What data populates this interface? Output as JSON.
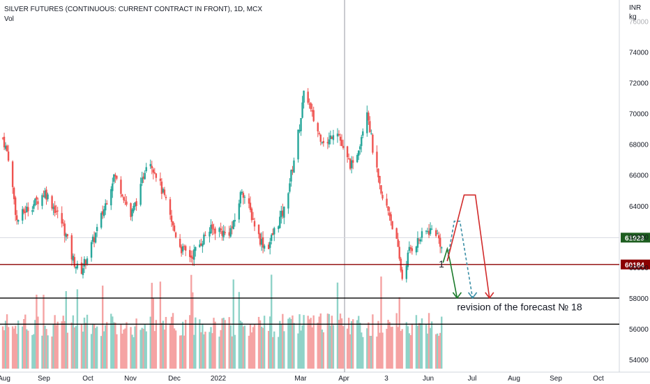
{
  "header": {
    "title": "SILVER FUTURES (CONTINUOUS: CURRENT CONTRACT IN FRONT), 1D, MCX",
    "subtitle": "Vol"
  },
  "price_axis": {
    "currency": "INR",
    "unit": "kg"
  },
  "chart_data": {
    "type": "candlestick",
    "title": "SILVER FUTURES (CONTINUOUS: CURRENT CONTRACT IN FRONT), 1D, MCX",
    "ylim": [
      53500,
      76500
    ],
    "yticks": [
      54000,
      56000,
      58000,
      60000,
      62000,
      64000,
      66000,
      68000,
      70000,
      72000,
      74000,
      76000
    ],
    "x_labels": [
      "Aug",
      "Sep",
      "Oct",
      "Nov",
      "Dec",
      "2022",
      "Mar",
      "Apr",
      "3",
      "Jun",
      "Jul",
      "Aug",
      "Sep",
      "Oct"
    ],
    "price_path": [
      [
        "2021-08-02",
        68400
      ],
      [
        "2021-08-06",
        67200
      ],
      [
        "2021-08-12",
        63000
      ],
      [
        "2021-08-18",
        63700
      ],
      [
        "2021-08-25",
        64200
      ],
      [
        "2021-09-01",
        64900
      ],
      [
        "2021-09-08",
        63800
      ],
      [
        "2021-09-14",
        62700
      ],
      [
        "2021-09-20",
        60700
      ],
      [
        "2021-09-26",
        59600
      ],
      [
        "2021-09-30",
        60500
      ],
      [
        "2021-10-06",
        61900
      ],
      [
        "2021-10-13",
        63800
      ],
      [
        "2021-10-20",
        66000
      ],
      [
        "2021-10-26",
        64900
      ],
      [
        "2021-11-01",
        63300
      ],
      [
        "2021-11-08",
        65100
      ],
      [
        "2021-11-13",
        67300
      ],
      [
        "2021-11-19",
        66100
      ],
      [
        "2021-11-25",
        64500
      ],
      [
        "2021-12-01",
        62600
      ],
      [
        "2021-12-07",
        61200
      ],
      [
        "2021-12-14",
        60700
      ],
      [
        "2021-12-20",
        61500
      ],
      [
        "2021-12-26",
        62400
      ],
      [
        "2022-01-02",
        62500
      ],
      [
        "2022-01-08",
        62100
      ],
      [
        "2022-01-13",
        62700
      ],
      [
        "2022-01-19",
        65100
      ],
      [
        "2022-01-25",
        63600
      ],
      [
        "2022-02-01",
        61800
      ],
      [
        "2022-02-06",
        61200
      ],
      [
        "2022-02-12",
        62600
      ],
      [
        "2022-02-18",
        63700
      ],
      [
        "2022-02-24",
        66500
      ],
      [
        "2022-03-01",
        69200
      ],
      [
        "2022-03-05",
        71800
      ],
      [
        "2022-03-09",
        70100
      ],
      [
        "2022-03-15",
        68600
      ],
      [
        "2022-03-21",
        68000
      ],
      [
        "2022-03-27",
        69300
      ],
      [
        "2022-04-02",
        67200
      ],
      [
        "2022-04-08",
        66500
      ],
      [
        "2022-04-13",
        68200
      ],
      [
        "2022-04-18",
        70400
      ],
      [
        "2022-04-22",
        67700
      ],
      [
        "2022-04-28",
        64600
      ],
      [
        "2022-05-04",
        63500
      ],
      [
        "2022-05-09",
        61600
      ],
      [
        "2022-05-13",
        59300
      ],
      [
        "2022-05-18",
        61100
      ],
      [
        "2022-05-24",
        61700
      ],
      [
        "2022-05-30",
        62300
      ],
      [
        "2022-06-05",
        62500
      ],
      [
        "2022-06-09",
        61600
      ],
      [
        "2022-06-11",
        60800
      ]
    ],
    "volume_note": "volume bars follow price colour (up: teal, down: pink)",
    "levels": [
      {
        "name": "current",
        "value": 61929,
        "color": "#1e5e20"
      },
      {
        "name": "support",
        "value": 60184,
        "color": "#8b0000"
      },
      {
        "name": "level-58000",
        "value": 58000,
        "color": "#000000"
      },
      {
        "name": "level-56300",
        "value": 56300,
        "color": "#000000"
      }
    ],
    "forecast_paths": [
      {
        "name": "green",
        "color": "#1a7a2a",
        "dash": false,
        "points": [
          [
            "2022-06-11",
            60300
          ],
          [
            "2022-06-14",
            61200
          ],
          [
            "2022-06-16",
            60400
          ],
          [
            "2022-06-21",
            58000
          ]
        ]
      },
      {
        "name": "teal",
        "color": "#3b8fa6",
        "dash": true,
        "points": [
          [
            "2022-06-14",
            60400
          ],
          [
            "2022-06-19",
            63000
          ],
          [
            "2022-06-23",
            63000
          ],
          [
            "2022-07-02",
            58000
          ]
        ]
      },
      {
        "name": "red",
        "color": "#d12a2a",
        "dash": false,
        "points": [
          [
            "2022-06-14",
            60400
          ],
          [
            "2022-06-26",
            64700
          ],
          [
            "2022-07-04",
            64700
          ],
          [
            "2022-07-14",
            58000
          ]
        ]
      }
    ],
    "annotations": [
      {
        "text": "1",
        "at": [
          "2022-06-08",
          60000
        ]
      },
      {
        "text": "revision of the forecast № 18",
        "at": [
          "2022-06-21",
          57200
        ]
      }
    ],
    "crosshair_date": "2022-04-02",
    "colors": {
      "up": "#26a69a",
      "down": "#ef5350",
      "vol_up": "#8fd3c8",
      "vol_down": "#f5a3a3"
    }
  }
}
